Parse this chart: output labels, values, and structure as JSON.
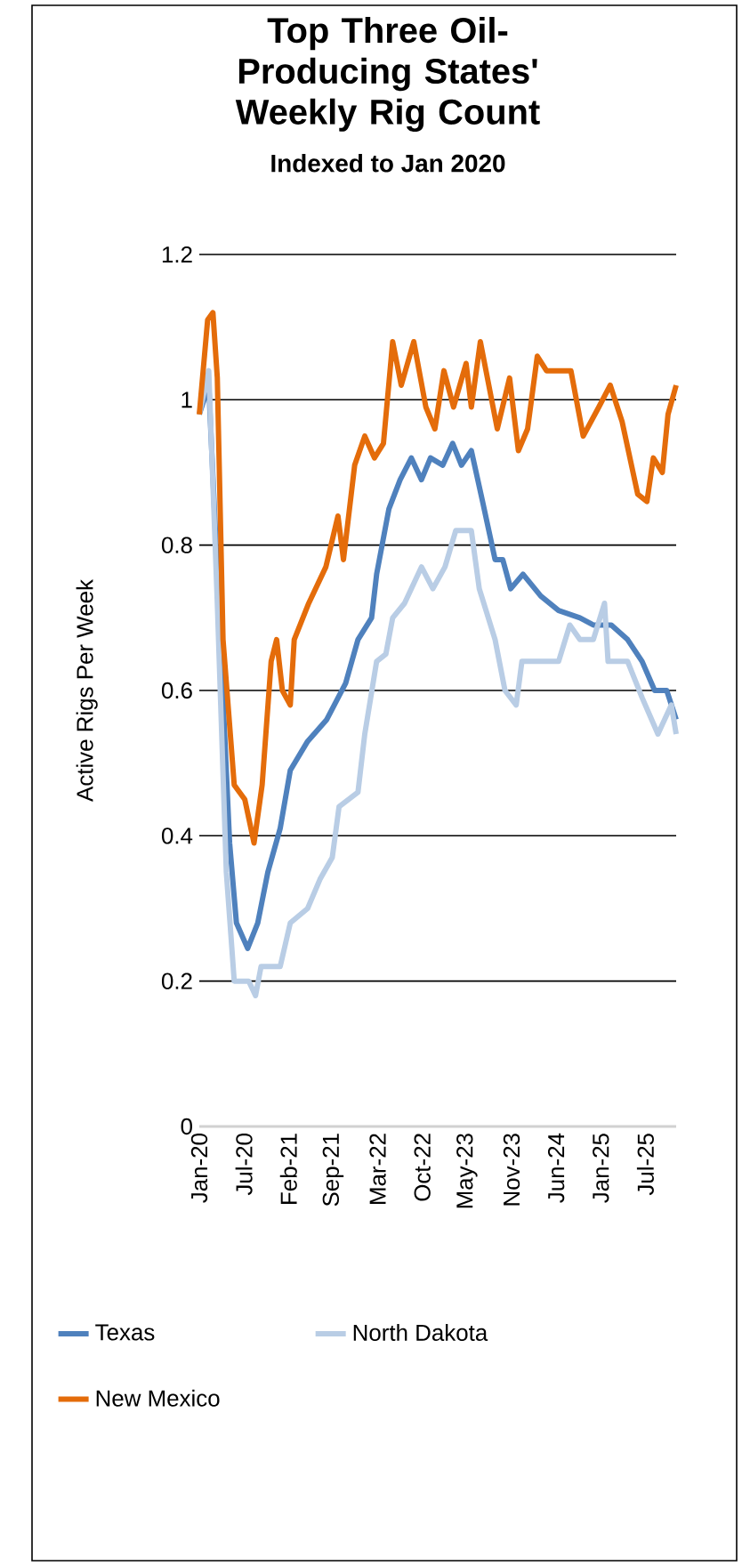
{
  "chart_data": {
    "type": "line",
    "title": "Top Three Oil-Producing States' Weekly Rig Count",
    "subtitle": "Indexed to Jan 2020",
    "ylabel": "Active Rigs Per Week",
    "ylim": [
      0,
      1.2
    ],
    "yticks": [
      0,
      0.2,
      0.4,
      0.6,
      0.8,
      1,
      1.2
    ],
    "xlim": [
      "2020-01-03",
      "2025-12-12"
    ],
    "xticks": [
      {
        "value": "2020-01-03",
        "label": "Jan-20"
      },
      {
        "value": "2020-07-24",
        "label": "Jul-20"
      },
      {
        "value": "2021-02-12",
        "label": "Feb-21"
      },
      {
        "value": "2021-09-03",
        "label": "Sep-21"
      },
      {
        "value": "2022-03-25",
        "label": "Mar-22"
      },
      {
        "value": "2022-10-14",
        "label": "Oct-22"
      },
      {
        "value": "2023-05-05",
        "label": "May-23"
      },
      {
        "value": "2023-11-24",
        "label": "Nov-23"
      },
      {
        "value": "2024-06-14",
        "label": "Jun-24"
      },
      {
        "value": "2025-01-03",
        "label": "Jan-25"
      },
      {
        "value": "2025-07-25",
        "label": "Jul-25"
      }
    ],
    "grid": "y",
    "legend": "bottom",
    "marker": "none",
    "line_style": "solid",
    "series": [
      {
        "name": "Texas",
        "color": "#4f81bd",
        "x": [
          "2020-01-03",
          "2020-02-15",
          "2020-05-20",
          "2020-06-20",
          "2020-08-10",
          "2020-09-25",
          "2020-11-10",
          "2021-01-05",
          "2021-02-20",
          "2021-05-10",
          "2021-08-05",
          "2021-10-30",
          "2021-12-25",
          "2022-02-25",
          "2022-03-20",
          "2022-05-15",
          "2022-07-05",
          "2022-08-25",
          "2022-10-10",
          "2022-11-20",
          "2023-01-15",
          "2023-03-01",
          "2023-04-10",
          "2023-05-25",
          "2023-07-15",
          "2023-09-10",
          "2023-10-15",
          "2023-11-20",
          "2024-01-15",
          "2024-04-05",
          "2024-06-25",
          "2024-09-30",
          "2024-11-30",
          "2025-02-20",
          "2025-05-05",
          "2025-07-10",
          "2025-09-05",
          "2025-10-30",
          "2025-12-12"
        ],
        "values": [
          0.98,
          1.02,
          0.39,
          0.28,
          0.245,
          0.28,
          0.35,
          0.41,
          0.49,
          0.53,
          0.56,
          0.61,
          0.67,
          0.7,
          0.76,
          0.85,
          0.89,
          0.92,
          0.89,
          0.92,
          0.91,
          0.94,
          0.91,
          0.93,
          0.86,
          0.78,
          0.78,
          0.74,
          0.76,
          0.73,
          0.71,
          0.7,
          0.69,
          0.69,
          0.67,
          0.64,
          0.6,
          0.6,
          0.56
        ]
      },
      {
        "name": "North Dakota",
        "color": "#b9cde5",
        "x": [
          "2020-01-03",
          "2020-02-15",
          "2020-03-25",
          "2020-05-05",
          "2020-06-10",
          "2020-08-15",
          "2020-09-15",
          "2020-10-10",
          "2021-01-05",
          "2021-02-20",
          "2021-05-10",
          "2021-07-05",
          "2021-08-30",
          "2021-09-30",
          "2021-12-25",
          "2022-01-25",
          "2022-03-20",
          "2022-05-01",
          "2022-06-01",
          "2022-07-25",
          "2022-10-10",
          "2022-12-01",
          "2023-01-25",
          "2023-03-15",
          "2023-05-25",
          "2023-06-30",
          "2023-09-10",
          "2023-10-25",
          "2023-12-15",
          "2024-01-10",
          "2024-06-25",
          "2024-08-15",
          "2024-09-30",
          "2024-11-30",
          "2025-01-20",
          "2025-02-05",
          "2025-05-05",
          "2025-07-10",
          "2025-09-20",
          "2025-11-20",
          "2025-12-12"
        ],
        "values": [
          0.98,
          1.04,
          0.72,
          0.35,
          0.2,
          0.2,
          0.18,
          0.22,
          0.22,
          0.28,
          0.3,
          0.34,
          0.37,
          0.44,
          0.46,
          0.54,
          0.64,
          0.65,
          0.7,
          0.72,
          0.77,
          0.74,
          0.77,
          0.82,
          0.82,
          0.74,
          0.67,
          0.6,
          0.58,
          0.64,
          0.64,
          0.69,
          0.67,
          0.67,
          0.72,
          0.64,
          0.64,
          0.59,
          0.54,
          0.58,
          0.54
        ]
      },
      {
        "name": "New Mexico",
        "color": "#e46c0a",
        "x": [
          "2020-01-03",
          "2020-02-10",
          "2020-03-05",
          "2020-03-25",
          "2020-04-15",
          "2020-04-20",
          "2020-06-10",
          "2020-07-28",
          "2020-09-08",
          "2020-10-15",
          "2020-11-25",
          "2020-12-20",
          "2021-01-15",
          "2021-02-20",
          "2021-03-10",
          "2021-05-15",
          "2021-08-01",
          "2021-09-25",
          "2021-10-20",
          "2021-12-10",
          "2022-01-25",
          "2022-03-10",
          "2022-04-20",
          "2022-06-01",
          "2022-07-10",
          "2022-09-05",
          "2022-10-30",
          "2022-12-10",
          "2023-01-20",
          "2023-03-05",
          "2023-05-01",
          "2023-05-25",
          "2023-07-05",
          "2023-09-20",
          "2023-11-15",
          "2023-12-25",
          "2024-02-05",
          "2024-03-20",
          "2024-05-01",
          "2024-08-20",
          "2024-10-15",
          "2024-12-25",
          "2025-02-15",
          "2025-04-10",
          "2025-06-20",
          "2025-08-01",
          "2025-08-30",
          "2025-10-10",
          "2025-11-05",
          "2025-12-12"
        ],
        "values": [
          0.98,
          1.11,
          1.12,
          1.03,
          0.74,
          0.67,
          0.47,
          0.45,
          0.39,
          0.47,
          0.64,
          0.67,
          0.6,
          0.58,
          0.67,
          0.72,
          0.77,
          0.84,
          0.78,
          0.91,
          0.95,
          0.92,
          0.94,
          1.08,
          1.02,
          1.08,
          0.99,
          0.96,
          1.04,
          0.99,
          1.05,
          0.99,
          1.08,
          0.96,
          1.03,
          0.93,
          0.96,
          1.06,
          1.04,
          1.04,
          0.95,
          0.99,
          1.02,
          0.97,
          0.87,
          0.86,
          0.92,
          0.9,
          0.98,
          1.02
        ]
      }
    ]
  }
}
